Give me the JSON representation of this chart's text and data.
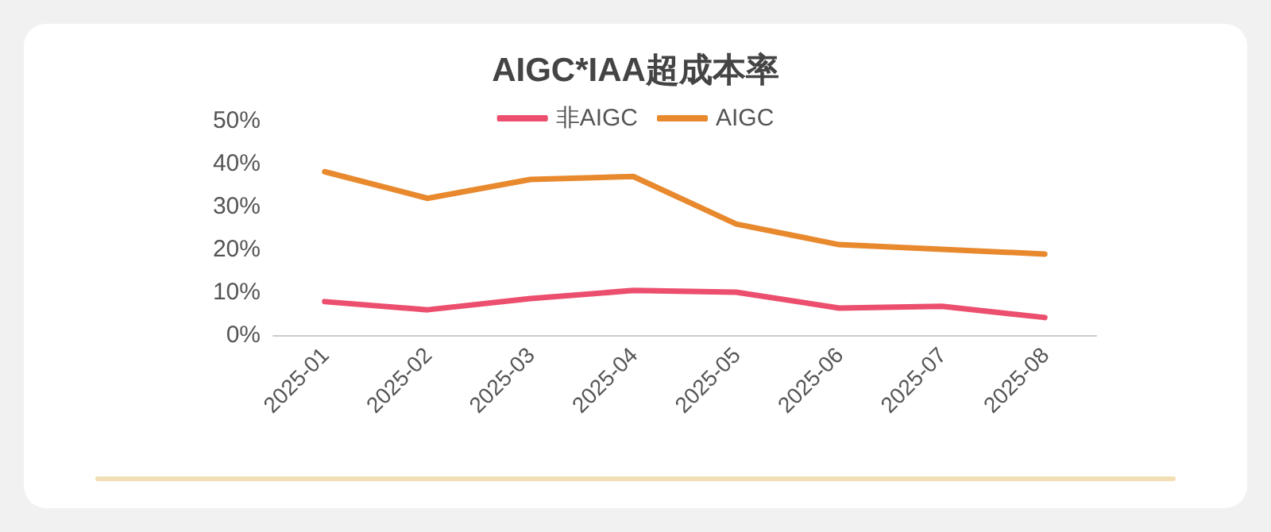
{
  "chart_data": {
    "type": "line",
    "title": "AIGC*IAA超成本率",
    "categories": [
      "2025-01",
      "2025-02",
      "2025-03",
      "2025-04",
      "2025-05",
      "2025-06",
      "2025-07",
      "2025-08"
    ],
    "series": [
      {
        "name": "非AIGC",
        "color": "#ec4f6e",
        "values": [
          7.8,
          5.9,
          8.5,
          10.4,
          10,
          6.3,
          6.7,
          4.1
        ]
      },
      {
        "name": "AIGC",
        "color": "#e8892e",
        "values": [
          38.1,
          31.9,
          36.3,
          37,
          25.9,
          21.1,
          20,
          18.9
        ]
      }
    ],
    "ylim": [
      0,
      50
    ],
    "yticks": [
      {
        "value": 0,
        "label": "0%"
      },
      {
        "value": 10,
        "label": "10%"
      },
      {
        "value": 20,
        "label": "20%"
      },
      {
        "value": 30,
        "label": "30%"
      },
      {
        "value": 40,
        "label": "40%"
      },
      {
        "value": 50,
        "label": "50%"
      }
    ],
    "grid": false,
    "legend": "top",
    "marker": "none",
    "line_style": "solid"
  }
}
